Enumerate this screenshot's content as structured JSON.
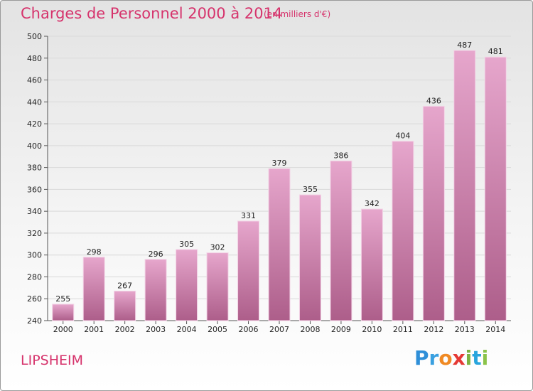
{
  "header": {
    "title": "Charges de Personnel 2000 à 2014",
    "subtitle": "(en milliers d'€)"
  },
  "footer": {
    "place": "LIPSHEIM",
    "logo": {
      "text": "Proxiti",
      "letters": [
        {
          "char": "P",
          "color": "#2f8fd8"
        },
        {
          "char": "r",
          "color": "#3aa0e0"
        },
        {
          "char": "o",
          "color": "#f08a24"
        },
        {
          "char": "x",
          "color": "#e53935"
        },
        {
          "char": "i",
          "color": "#7cb342"
        },
        {
          "char": "t",
          "color": "#29a5dd"
        },
        {
          "char": "i",
          "color": "#8bc34a"
        }
      ]
    }
  },
  "chart_data": {
    "type": "bar",
    "title": "Charges de Personnel 2000 à 2014",
    "subtitle": "(en milliers d'€)",
    "categories": [
      "2000",
      "2001",
      "2002",
      "2003",
      "2004",
      "2005",
      "2006",
      "2007",
      "2008",
      "2009",
      "2010",
      "2011",
      "2012",
      "2013",
      "2014"
    ],
    "values": [
      255,
      298,
      267,
      296,
      305,
      302,
      331,
      379,
      355,
      386,
      342,
      404,
      436,
      487,
      481
    ],
    "ylim": [
      240,
      500
    ],
    "yticks": [
      240,
      260,
      280,
      300,
      320,
      340,
      360,
      380,
      400,
      420,
      440,
      460,
      480,
      500
    ],
    "grid": true,
    "bar_color_top": "#e6a6cc",
    "bar_color_bottom": "#ad5e8a",
    "data_labels": true
  }
}
